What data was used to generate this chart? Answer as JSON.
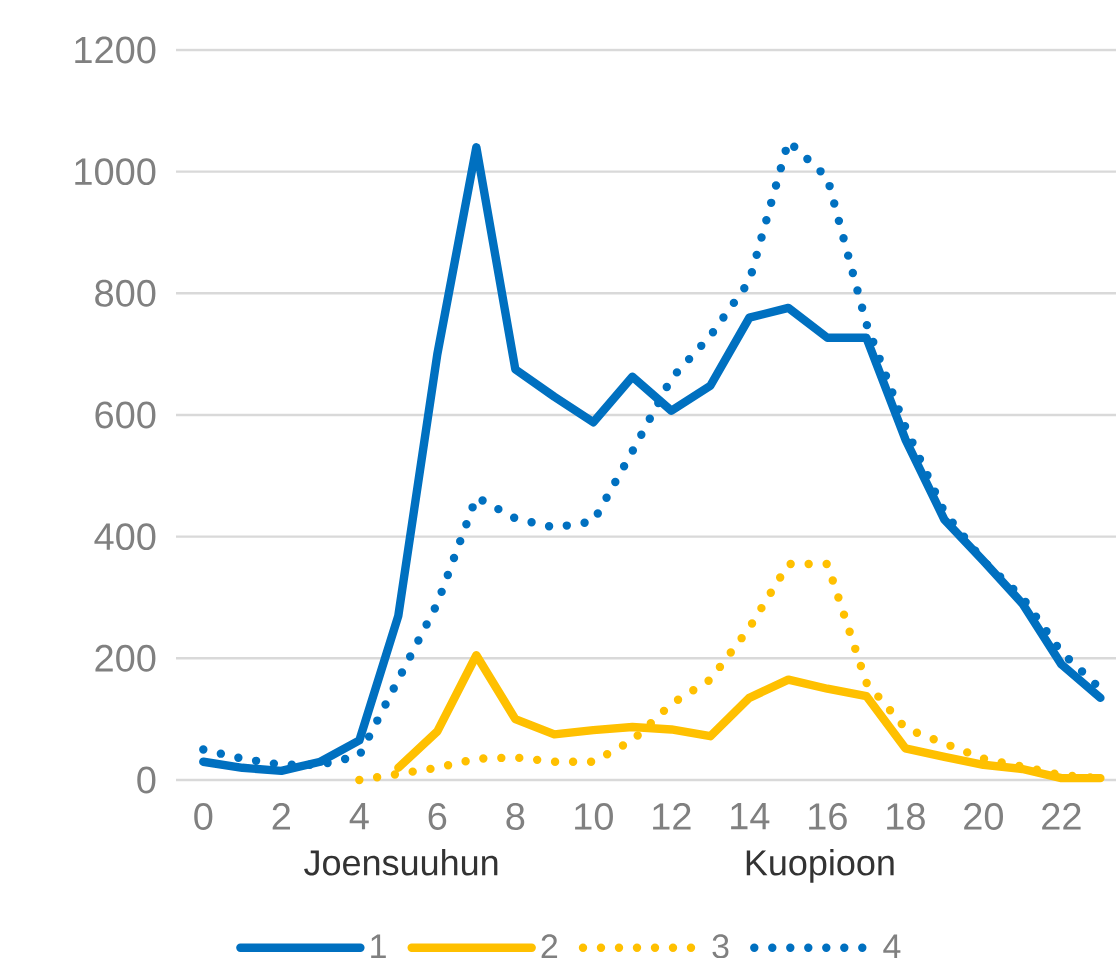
{
  "chart_data": {
    "type": "line",
    "x": [
      0,
      1,
      2,
      3,
      4,
      5,
      6,
      7,
      8,
      9,
      10,
      11,
      12,
      13,
      14,
      15,
      16,
      17,
      18,
      19,
      20,
      21,
      22,
      23
    ],
    "xlim": [
      -0.7,
      23.4
    ],
    "xticks": [
      0,
      2,
      4,
      6,
      8,
      10,
      12,
      14,
      16,
      18,
      20,
      22
    ],
    "ylim": [
      0,
      1200
    ],
    "yticks": [
      0,
      200,
      400,
      600,
      800,
      1000,
      1200
    ],
    "grid": "y",
    "legend": "bottom",
    "marker": "none",
    "annotations": [
      "Joensuuhun",
      "Kuopioon"
    ],
    "series": [
      {
        "name": "1",
        "color": "#0070c0",
        "line_style": "solid",
        "values": [
          30,
          20,
          15,
          30,
          65,
          270,
          700,
          1040,
          675,
          630,
          588,
          663,
          607,
          648,
          760,
          776,
          727,
          727,
          560,
          428,
          360,
          290,
          190,
          135
        ]
      },
      {
        "name": "2",
        "color": "#ffc000",
        "line_style": "solid",
        "values": [
          null,
          null,
          null,
          null,
          null,
          20,
          80,
          205,
          100,
          75,
          82,
          87,
          83,
          72,
          135,
          165,
          150,
          138,
          52,
          38,
          25,
          18,
          3,
          3
        ]
      },
      {
        "name": "3",
        "color": "#ffc000",
        "line_style": "dotted",
        "values": [
          null,
          null,
          null,
          null,
          0,
          10,
          20,
          35,
          37,
          30,
          30,
          65,
          125,
          165,
          250,
          355,
          355,
          160,
          85,
          60,
          35,
          22,
          8,
          3
        ]
      },
      {
        "name": "4",
        "color": "#0070c0",
        "line_style": "dotted",
        "values": [
          50,
          35,
          25,
          25,
          40,
          165,
          290,
          465,
          430,
          415,
          425,
          540,
          660,
          730,
          820,
          1050,
          990,
          750,
          580,
          440,
          360,
          300,
          210,
          150
        ]
      }
    ]
  }
}
